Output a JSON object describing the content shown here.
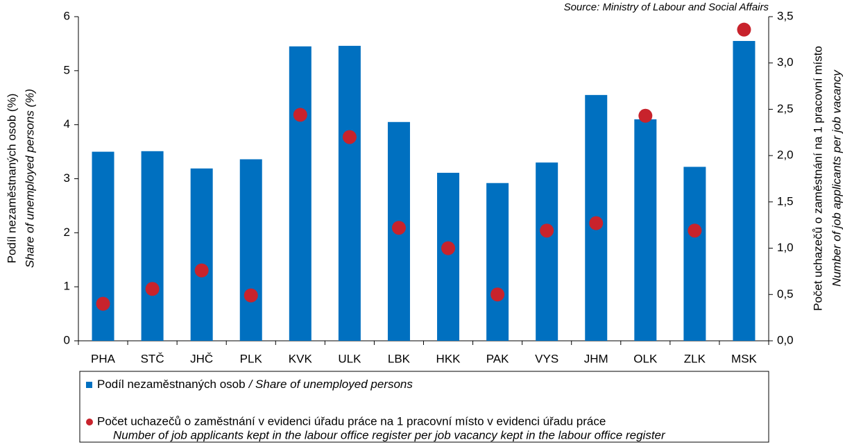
{
  "chart_data": {
    "type": "bar_dot",
    "source": "Source: Ministry of Labour and Social Affairs",
    "y_label": "Podíl nezaměstnaných osob (%)",
    "y_label_en": "Share of unemployed persons (%)",
    "y2_label": "Počet uchazečů o zaměstnání na 1 pracovní místo",
    "y2_label_en": "Number of job applicants per job vacancy",
    "categories": [
      "PHA",
      "STČ",
      "JHČ",
      "PLK",
      "KVK",
      "ULK",
      "LBK",
      "HKK",
      "PAK",
      "VYS",
      "JHM",
      "OLK",
      "ZLK",
      "MSK"
    ],
    "series": [
      {
        "name": "Podíl nezaměstnaných osob",
        "name_en": "/ Share of unemployed persons",
        "color": "#0070c0",
        "values": [
          3.5,
          3.51,
          3.19,
          3.36,
          5.45,
          5.46,
          4.05,
          3.11,
          2.92,
          3.3,
          4.55,
          4.1,
          3.22,
          5.55
        ]
      },
      {
        "name": "Počet uchazečů o zaměstnání v evidenci úřadu práce na 1 pracovní místo v evidenci úřadu práce",
        "name_en": "Number of job applicants kept in the labour office register per job vacancy kept in the labour office register",
        "color": "#c8232c",
        "axis": "y2",
        "values": [
          0.4,
          0.56,
          0.76,
          0.49,
          2.44,
          2.2,
          1.22,
          1.0,
          0.5,
          1.19,
          1.27,
          2.43,
          1.19,
          3.36
        ]
      }
    ],
    "ylim": [
      0,
      6
    ],
    "yticks": [
      0,
      1,
      2,
      3,
      4,
      5,
      6
    ],
    "y2lim": [
      0,
      3.5
    ],
    "y2ticks": [
      {
        "value": 0,
        "label": "0,0"
      },
      {
        "value": 0.5,
        "label": "0,5"
      },
      {
        "value": 1,
        "label": "1,0"
      },
      {
        "value": 1.5,
        "label": "1,5"
      },
      {
        "value": 2,
        "label": "2,0"
      },
      {
        "value": 2.5,
        "label": "2,5"
      },
      {
        "value": 3,
        "label": "3,0"
      },
      {
        "value": 3.5,
        "label": "3,5"
      }
    ]
  }
}
